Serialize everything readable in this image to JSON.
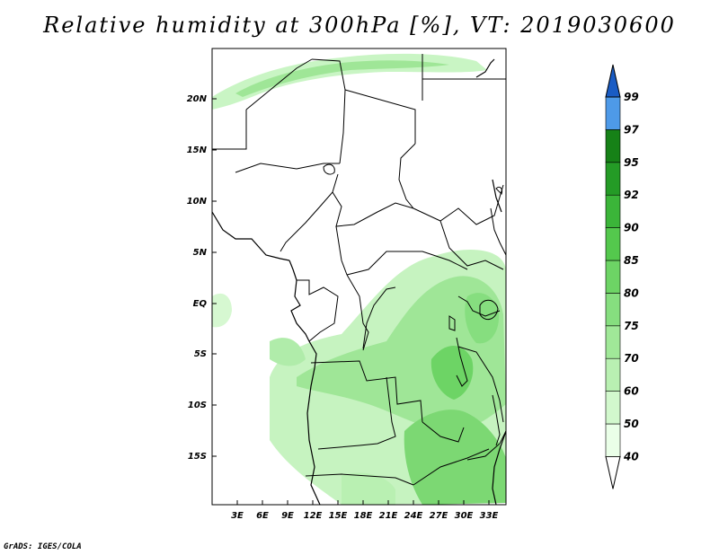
{
  "title": "Relative humidity at 300hPa [%], VT: 2019030600",
  "credit": "GrADS: IGES/COLA",
  "lat_labels": [
    "20N",
    "15N",
    "10N",
    "5N",
    "EQ",
    "5S",
    "10S",
    "15S"
  ],
  "lon_labels": [
    "3E",
    "6E",
    "9E",
    "12E",
    "15E",
    "18E",
    "21E",
    "24E",
    "27E",
    "30E",
    "33E"
  ],
  "colorbar": {
    "labels": [
      "40",
      "50",
      "60",
      "70",
      "75",
      "80",
      "85",
      "90",
      "92",
      "95",
      "97",
      "99"
    ],
    "colors": [
      "#eaffe8",
      "#d2f8cd",
      "#b9f0b2",
      "#a0e898",
      "#86de7f",
      "#6dd465",
      "#54c84d",
      "#3bb539",
      "#249b26",
      "#168117",
      "#4e9ae8",
      "#2a73d8",
      "#1a5cc4"
    ]
  }
}
